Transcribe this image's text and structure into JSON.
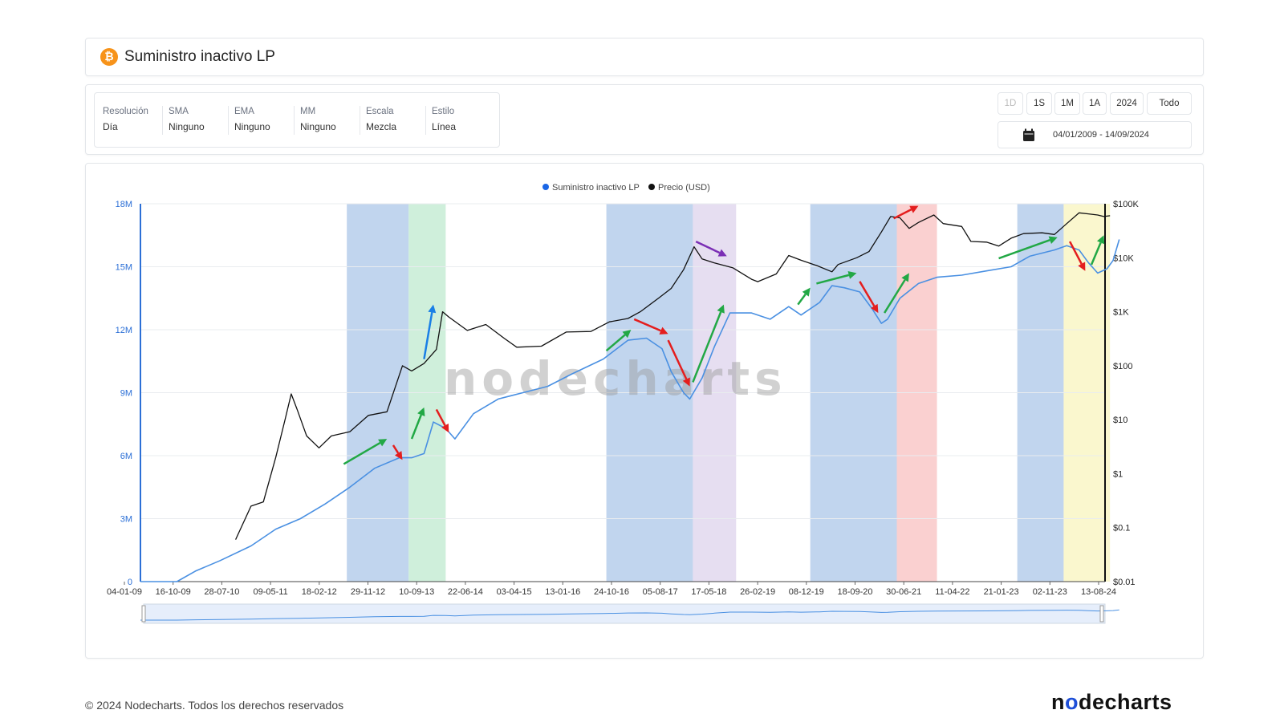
{
  "header": {
    "title": "Suministro inactivo LP",
    "icon": "bitcoin-icon",
    "icon_color": "#f7931a"
  },
  "options": [
    {
      "label": "Resolución",
      "value": "Día"
    },
    {
      "label": "SMA",
      "value": "Ninguno"
    },
    {
      "label": "EMA",
      "value": "Ninguno"
    },
    {
      "label": "MM",
      "value": "Ninguno"
    },
    {
      "label": "Escala",
      "value": "Mezcla"
    },
    {
      "label": "Estilo",
      "value": "Línea"
    }
  ],
  "range_buttons": [
    {
      "label": "1D",
      "disabled": true
    },
    {
      "label": "1S",
      "disabled": false
    },
    {
      "label": "1M",
      "disabled": false
    },
    {
      "label": "1A",
      "disabled": false
    },
    {
      "label": "2024",
      "disabled": false
    },
    {
      "label": "Todo",
      "disabled": false
    }
  ],
  "date_range": "04/01/2009 - 14/09/2024",
  "watermark": "nodecharts",
  "footer": {
    "copyright": "© 2024 Nodecharts. Todos los derechos reservados",
    "logo_pre": "n",
    "logo_o": "o",
    "logo_post": "decharts"
  },
  "chart_data": {
    "type": "line",
    "legend": [
      "Suministro inactivo LP",
      "Precio (USD)"
    ],
    "legend_position": "top-center",
    "x_tick_labels": [
      "04-01-09",
      "16-10-09",
      "28-07-10",
      "09-05-11",
      "18-02-12",
      "29-11-12",
      "10-09-13",
      "22-06-14",
      "03-04-15",
      "13-01-16",
      "24-10-16",
      "05-08-17",
      "17-05-18",
      "26-02-19",
      "08-12-19",
      "18-09-20",
      "30-06-21",
      "11-04-22",
      "21-01-23",
      "02-11-23",
      "13-08-24"
    ],
    "y_left": {
      "ticks": [
        "0",
        "3M",
        "6M",
        "9M",
        "12M",
        "15M",
        "18M"
      ],
      "range": [
        0,
        18000000
      ]
    },
    "y_right": {
      "ticks": [
        "$0.01",
        "$0.1",
        "$1",
        "$10",
        "$100",
        "$1K",
        "$10K",
        "$100K"
      ],
      "scale": "log",
      "range": [
        0.01,
        100000
      ]
    },
    "grid": true,
    "series": [
      {
        "name": "Suministro inactivo LP",
        "axis": "left",
        "color": "#4a90e2",
        "points": [
          [
            2009.01,
            0
          ],
          [
            2009.6,
            0
          ],
          [
            2009.9,
            500000
          ],
          [
            2010.3,
            1000000
          ],
          [
            2010.8,
            1700000
          ],
          [
            2011.2,
            2500000
          ],
          [
            2011.6,
            3000000
          ],
          [
            2012.0,
            3700000
          ],
          [
            2012.4,
            4500000
          ],
          [
            2012.8,
            5400000
          ],
          [
            2013.2,
            5900000
          ],
          [
            2013.4,
            5900000
          ],
          [
            2013.6,
            6100000
          ],
          [
            2013.75,
            7600000
          ],
          [
            2013.95,
            7300000
          ],
          [
            2014.1,
            6800000
          ],
          [
            2014.4,
            8000000
          ],
          [
            2014.8,
            8700000
          ],
          [
            2015.2,
            9000000
          ],
          [
            2015.6,
            9300000
          ],
          [
            2016.0,
            9900000
          ],
          [
            2016.5,
            10600000
          ],
          [
            2016.9,
            11500000
          ],
          [
            2017.2,
            11600000
          ],
          [
            2017.45,
            11100000
          ],
          [
            2017.6,
            10000000
          ],
          [
            2017.8,
            9000000
          ],
          [
            2017.9,
            8700000
          ],
          [
            2018.1,
            9700000
          ],
          [
            2018.3,
            11200000
          ],
          [
            2018.55,
            12800000
          ],
          [
            2018.9,
            12800000
          ],
          [
            2019.2,
            12500000
          ],
          [
            2019.5,
            13100000
          ],
          [
            2019.7,
            12700000
          ],
          [
            2020.0,
            13300000
          ],
          [
            2020.2,
            14100000
          ],
          [
            2020.4,
            14000000
          ],
          [
            2020.65,
            13800000
          ],
          [
            2020.85,
            13000000
          ],
          [
            2021.0,
            12300000
          ],
          [
            2021.1,
            12500000
          ],
          [
            2021.3,
            13500000
          ],
          [
            2021.6,
            14200000
          ],
          [
            2021.9,
            14500000
          ],
          [
            2022.3,
            14600000
          ],
          [
            2022.7,
            14800000
          ],
          [
            2023.1,
            15000000
          ],
          [
            2023.4,
            15500000
          ],
          [
            2023.8,
            15800000
          ],
          [
            2024.0,
            16000000
          ],
          [
            2024.2,
            15800000
          ],
          [
            2024.35,
            15200000
          ],
          [
            2024.5,
            14700000
          ],
          [
            2024.65,
            14900000
          ],
          [
            2024.75,
            15300000
          ],
          [
            2024.85,
            16300000
          ]
        ]
      },
      {
        "name": "Precio (USD)",
        "axis": "right",
        "color": "#111111",
        "points": [
          [
            2010.55,
            0.06
          ],
          [
            2010.8,
            0.25
          ],
          [
            2011.0,
            0.3
          ],
          [
            2011.2,
            2.0
          ],
          [
            2011.35,
            10
          ],
          [
            2011.45,
            30
          ],
          [
            2011.55,
            15
          ],
          [
            2011.7,
            5
          ],
          [
            2011.9,
            3
          ],
          [
            2012.1,
            5
          ],
          [
            2012.4,
            6
          ],
          [
            2012.7,
            12
          ],
          [
            2013.0,
            14
          ],
          [
            2013.25,
            100
          ],
          [
            2013.4,
            80
          ],
          [
            2013.6,
            110
          ],
          [
            2013.8,
            200
          ],
          [
            2013.9,
            1000
          ],
          [
            2014.0,
            800
          ],
          [
            2014.3,
            450
          ],
          [
            2014.6,
            580
          ],
          [
            2014.9,
            320
          ],
          [
            2015.1,
            220
          ],
          [
            2015.5,
            230
          ],
          [
            2015.9,
            420
          ],
          [
            2016.3,
            430
          ],
          [
            2016.6,
            650
          ],
          [
            2016.9,
            750
          ],
          [
            2017.1,
            1000
          ],
          [
            2017.4,
            1800
          ],
          [
            2017.6,
            2700
          ],
          [
            2017.8,
            6000
          ],
          [
            2017.97,
            16000
          ],
          [
            2018.1,
            9500
          ],
          [
            2018.3,
            8000
          ],
          [
            2018.6,
            6500
          ],
          [
            2018.9,
            4000
          ],
          [
            2019.0,
            3600
          ],
          [
            2019.3,
            5000
          ],
          [
            2019.5,
            11000
          ],
          [
            2019.7,
            9000
          ],
          [
            2019.95,
            7200
          ],
          [
            2020.2,
            5500
          ],
          [
            2020.3,
            7500
          ],
          [
            2020.6,
            10000
          ],
          [
            2020.8,
            13000
          ],
          [
            2021.0,
            30000
          ],
          [
            2021.15,
            58000
          ],
          [
            2021.3,
            55000
          ],
          [
            2021.45,
            35000
          ],
          [
            2021.6,
            45000
          ],
          [
            2021.85,
            62000
          ],
          [
            2022.0,
            43000
          ],
          [
            2022.3,
            38000
          ],
          [
            2022.45,
            20000
          ],
          [
            2022.7,
            19500
          ],
          [
            2022.9,
            16500
          ],
          [
            2023.1,
            23000
          ],
          [
            2023.3,
            28000
          ],
          [
            2023.6,
            29000
          ],
          [
            2023.8,
            27000
          ],
          [
            2024.0,
            43000
          ],
          [
            2024.2,
            68000
          ],
          [
            2024.35,
            65000
          ],
          [
            2024.5,
            62000
          ],
          [
            2024.6,
            58000
          ],
          [
            2024.7,
            60000
          ]
        ]
      }
    ],
    "highlight_bands": [
      {
        "from": 2012.35,
        "to": 2013.35,
        "color": "#9fbfe5"
      },
      {
        "from": 2013.35,
        "to": 2013.95,
        "color": "#b6e6c8"
      },
      {
        "from": 2016.55,
        "to": 2017.95,
        "color": "#9fbfe5"
      },
      {
        "from": 2017.95,
        "to": 2018.65,
        "color": "#d8cdea"
      },
      {
        "from": 2019.85,
        "to": 2021.25,
        "color": "#9fbfe5"
      },
      {
        "from": 2021.25,
        "to": 2021.9,
        "color": "#f7b7b7"
      },
      {
        "from": 2023.2,
        "to": 2023.95,
        "color": "#9fbfe5"
      },
      {
        "from": 2023.95,
        "to": 2024.7,
        "color": "#f8f3b4"
      }
    ],
    "annotation_arrows": [
      {
        "from": [
          2012.3,
          5600000
        ],
        "to": [
          2013.0,
          6800000
        ],
        "color": "#22a845"
      },
      {
        "from": [
          2013.1,
          6500000
        ],
        "to": [
          2013.25,
          5800000
        ],
        "color": "#e41e1e"
      },
      {
        "from": [
          2013.4,
          6800000
        ],
        "to": [
          2013.6,
          8300000
        ],
        "color": "#22a845"
      },
      {
        "from": [
          2013.8,
          8200000
        ],
        "to": [
          2014.0,
          7100000
        ],
        "color": "#e41e1e"
      },
      {
        "from": [
          2013.6,
          10600000
        ],
        "to": [
          2013.75,
          13200000
        ],
        "color": "#1a7fe6"
      },
      {
        "from": [
          2016.55,
          11000000
        ],
        "to": [
          2016.95,
          12000000
        ],
        "color": "#22a845"
      },
      {
        "from": [
          2017.0,
          12500000
        ],
        "to": [
          2017.55,
          11800000
        ],
        "color": "#e41e1e"
      },
      {
        "from": [
          2017.55,
          11500000
        ],
        "to": [
          2017.9,
          9300000
        ],
        "color": "#e41e1e"
      },
      {
        "from": [
          2017.95,
          9500000
        ],
        "to": [
          2018.45,
          13200000
        ],
        "color": "#22a845"
      },
      {
        "from": [
          2018.0,
          16200000
        ],
        "to": [
          2018.5,
          15500000
        ],
        "color": "#7b2fb5"
      },
      {
        "from": [
          2019.65,
          13200000
        ],
        "to": [
          2019.85,
          14000000
        ],
        "color": "#22a845"
      },
      {
        "from": [
          2019.95,
          14200000
        ],
        "to": [
          2020.6,
          14700000
        ],
        "color": "#22a845"
      },
      {
        "from": [
          2020.65,
          14300000
        ],
        "to": [
          2020.95,
          12800000
        ],
        "color": "#e41e1e"
      },
      {
        "from": [
          2021.05,
          12800000
        ],
        "to": [
          2021.45,
          14700000
        ],
        "color": "#22a845"
      },
      {
        "from": [
          2021.2,
          17300000
        ],
        "to": [
          2021.6,
          17900000
        ],
        "color": "#e41e1e"
      },
      {
        "from": [
          2022.9,
          15400000
        ],
        "to": [
          2023.85,
          16400000
        ],
        "color": "#22a845"
      },
      {
        "from": [
          2024.05,
          16200000
        ],
        "to": [
          2024.3,
          14800000
        ],
        "color": "#e41e1e"
      },
      {
        "from": [
          2024.4,
          15100000
        ],
        "to": [
          2024.6,
          16500000
        ],
        "color": "#22a845"
      }
    ]
  }
}
